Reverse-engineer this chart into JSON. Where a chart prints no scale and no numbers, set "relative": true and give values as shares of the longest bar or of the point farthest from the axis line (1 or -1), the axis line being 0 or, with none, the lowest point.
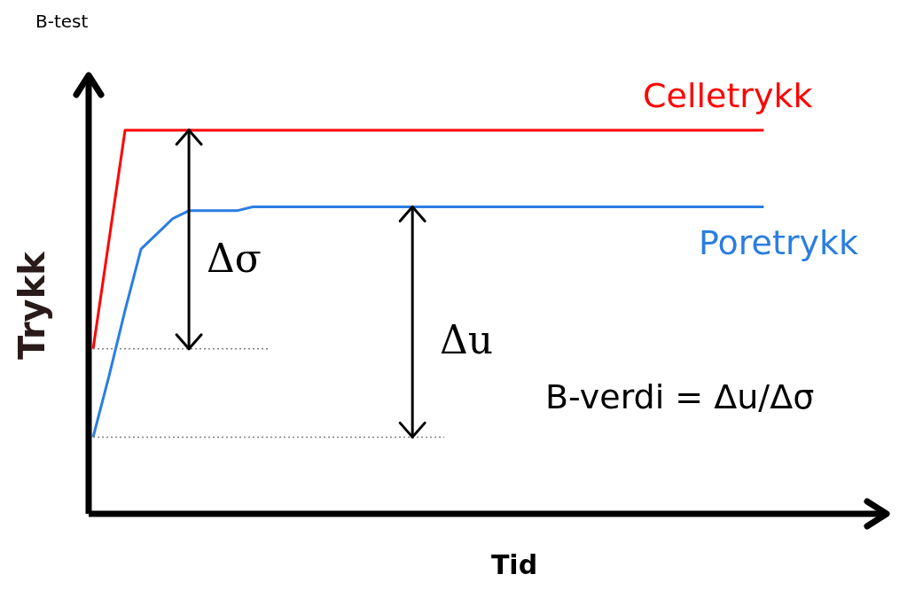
{
  "chart_data": {
    "type": "line",
    "title": "B-test",
    "xlabel": "Tid",
    "ylabel": "Trykk",
    "relative": true,
    "legend": false,
    "marker": "none",
    "categories": [
      null,
      null,
      null,
      null,
      null,
      null,
      null,
      null,
      null,
      null,
      null,
      null,
      null,
      null,
      null,
      null,
      null,
      null,
      null,
      null,
      null,
      null,
      null,
      null,
      null,
      null,
      null,
      null,
      null,
      null,
      null,
      null,
      null,
      null,
      null,
      null,
      null,
      null,
      null,
      null,
      null,
      null,
      null,
      null,
      null,
      null,
      null,
      null,
      null,
      null
    ],
    "series": [
      {
        "name": "Celletrykk",
        "color": "#ff0000",
        "values": [
          0.43,
          0.715,
          1,
          1,
          1,
          1,
          1,
          1,
          1,
          1,
          1,
          1,
          1,
          1,
          1,
          1,
          1,
          1,
          1,
          1,
          1,
          1,
          1,
          1,
          1,
          1,
          1,
          1,
          1,
          1,
          1,
          1,
          1,
          1,
          1,
          1,
          1,
          1,
          1,
          1,
          1,
          1,
          1,
          null,
          null,
          null,
          null,
          null,
          null,
          null
        ]
      },
      {
        "name": "Poretrykk",
        "color": "#2a7de1",
        "values": [
          0.2,
          0.36,
          0.53,
          0.69,
          0.73,
          0.77,
          0.79,
          0.79,
          0.79,
          0.79,
          0.8,
          0.8,
          0.8,
          0.8,
          0.8,
          0.8,
          0.8,
          0.8,
          0.8,
          0.8,
          0.8,
          0.8,
          0.8,
          0.8,
          0.8,
          0.8,
          0.8,
          0.8,
          0.8,
          0.8,
          0.8,
          0.8,
          0.8,
          0.8,
          0.8,
          0.8,
          0.8,
          0.8,
          0.8,
          0.8,
          0.8,
          0.8,
          0.8,
          null,
          null,
          null,
          null,
          null,
          null,
          null
        ]
      },
      {
        "color": "#808080",
        "line_style": "dotted",
        "values": [
          0.43,
          0.43,
          0.43,
          0.43,
          0.43,
          0.43,
          0.43,
          0.43,
          0.43,
          0.43,
          0.43,
          0.43,
          null,
          null,
          null,
          null,
          null,
          null,
          null,
          null,
          null,
          null,
          null,
          null,
          null,
          null,
          null,
          null,
          null,
          null,
          null,
          null,
          null,
          null,
          null,
          null,
          null,
          null,
          null,
          null,
          null,
          null,
          null,
          null,
          null,
          null,
          null,
          null,
          null,
          null
        ]
      },
      {
        "color": "#808080",
        "line_style": "dotted",
        "values": [
          0.2,
          0.2,
          0.2,
          0.2,
          0.2,
          0.2,
          0.2,
          0.2,
          0.2,
          0.2,
          0.2,
          0.2,
          0.2,
          0.2,
          0.2,
          0.2,
          0.2,
          0.2,
          0.2,
          0.2,
          0.2,
          0.2,
          0.2,
          null,
          null,
          null,
          null,
          null,
          null,
          null,
          null,
          null,
          null,
          null,
          null,
          null,
          null,
          null,
          null,
          null,
          null,
          null,
          null,
          null,
          null,
          null,
          null,
          null,
          null,
          null
        ]
      }
    ],
    "annotations": [
      "Δσ",
      "Δu",
      "B-verdi = Δu/Δσ"
    ]
  }
}
